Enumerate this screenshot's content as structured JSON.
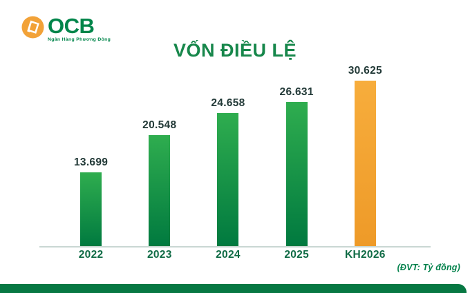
{
  "brand": {
    "name": "OCB",
    "tagline": "Ngân Hàng Phương Đông"
  },
  "title": "VỐN ĐIỀU LỆ",
  "unit_note": "(ĐVT: Tỷ đồng)",
  "colors": {
    "logo_orange": "#F2A238",
    "brand_green": "#00854A",
    "title_green": "#17874B",
    "bar_green_top": "#2FAD4F",
    "bar_green_bottom": "#00793F",
    "bar_orange_top": "#F7AD3C",
    "bar_orange_bottom": "#EE9A28",
    "value_label": "#233A38",
    "x_label_green": "#0F6B45",
    "axis_line": "#C9D7D3",
    "unit_note_green": "#00804A",
    "footer_green": "#077843"
  },
  "chart_data": {
    "type": "bar",
    "title": "VỐN ĐIỀU LỆ",
    "categories": [
      "2022",
      "2023",
      "2024",
      "2025",
      "KH2026"
    ],
    "values": [
      13699,
      20548,
      24658,
      26631,
      30625
    ],
    "value_labels": [
      "13.699",
      "20.548",
      "24.658",
      "26.631",
      "30.625"
    ],
    "bar_colors": [
      "green",
      "green",
      "green",
      "green",
      "orange"
    ],
    "unit": "Tỷ đồng",
    "xlabel": "",
    "ylabel": "",
    "ylim": [
      0,
      30625
    ],
    "grid": false,
    "legend": false
  }
}
